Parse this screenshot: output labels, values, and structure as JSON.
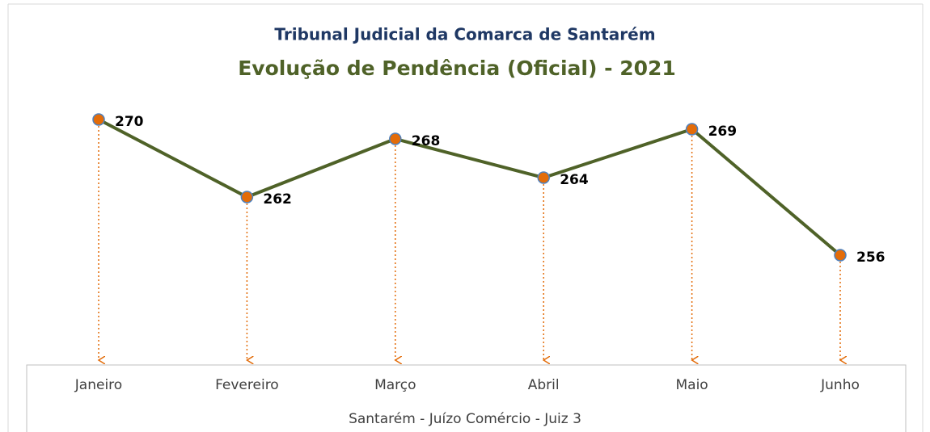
{
  "chart_data": {
    "type": "line",
    "title": "Tribunal Judicial da Comarca de Santarém",
    "subtitle": "Evolução de Pendência (Oficial) - 2021",
    "categories": [
      "Janeiro",
      "Fevereiro",
      "Março",
      "Abril",
      "Maio",
      "Junho"
    ],
    "values": [
      270,
      262,
      268,
      264,
      269,
      256
    ],
    "color": "#4f6228",
    "marker_color": "#e36c09",
    "marker_edge_color": "#4f81bd",
    "x_axis_label": "Santarém - Juízo Comércio - Juiz 3"
  }
}
